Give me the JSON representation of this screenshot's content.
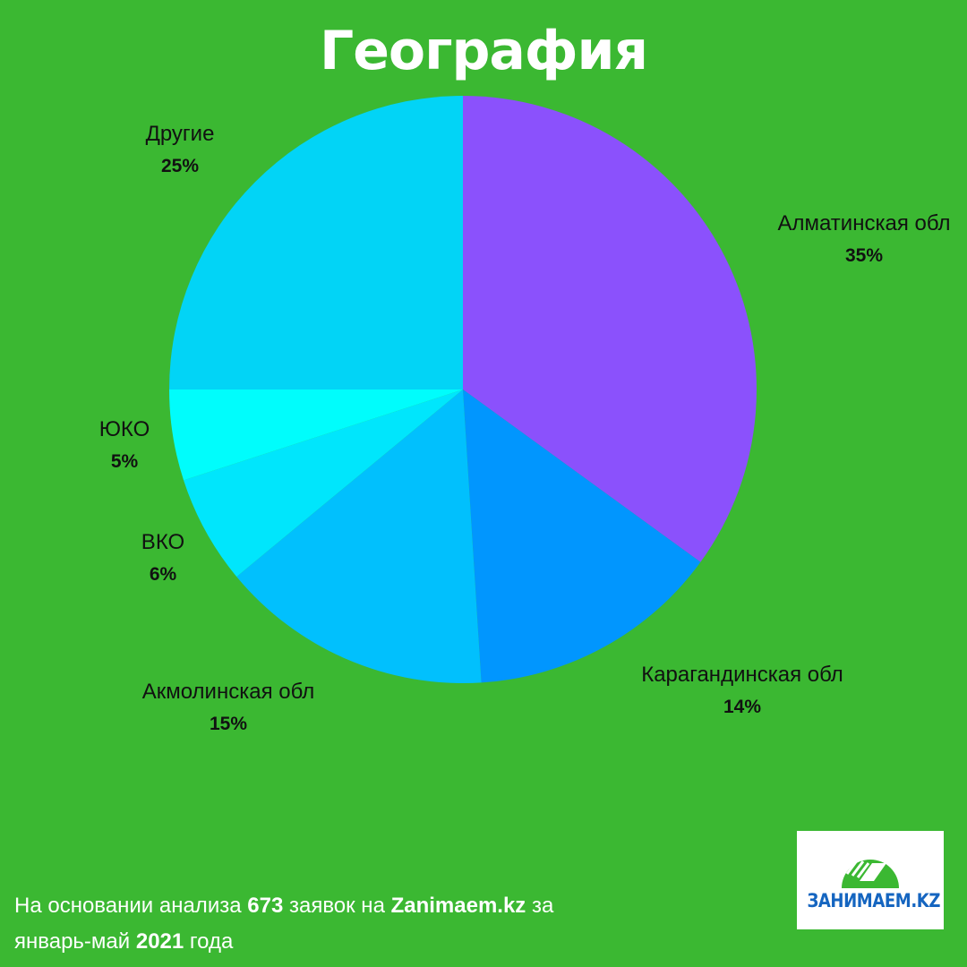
{
  "colors": {
    "background": "#3bb832",
    "title": "#ffffff",
    "label_text": "#111111",
    "footer_text": "#ffffff"
  },
  "chart_data": {
    "type": "pie",
    "title": "География",
    "start_angle_deg": 0,
    "direction": "clockwise",
    "slices": [
      {
        "label": "Алматинская обл",
        "value": 35,
        "display": "35%",
        "color": "#8b51fc",
        "label_anchor": "right"
      },
      {
        "label": "Карагандинская обл",
        "value": 14,
        "display": "14%",
        "color": "#0196fe",
        "label_anchor": "bottom-right"
      },
      {
        "label": "Акмолинская обл",
        "value": 15,
        "display": "15%",
        "color": "#01c0fd",
        "label_anchor": "bottom-left"
      },
      {
        "label": "ВКО",
        "value": 6,
        "display": "6%",
        "color": "#00e6fc",
        "label_anchor": "left"
      },
      {
        "label": "ЮКО",
        "value": 5,
        "display": "5%",
        "color": "#00fdfc",
        "label_anchor": "left"
      },
      {
        "label": "Другие",
        "value": 25,
        "display": "25%",
        "color": "#02d4f6",
        "label_anchor": "top-left"
      }
    ]
  },
  "footer": {
    "part1": "На основании анализа ",
    "count": "673",
    "part2": " заявок на ",
    "site": "Zanimaem.kz",
    "part3": "  за",
    "part4": "январь-май ",
    "year": "2021",
    "part5": " года"
  },
  "logo": {
    "text": "ЗАНИМАЕМ.KZ",
    "icon": "logo-emblem-icon",
    "colors": {
      "dome": "#3bb832",
      "text": "#1565c0"
    }
  }
}
